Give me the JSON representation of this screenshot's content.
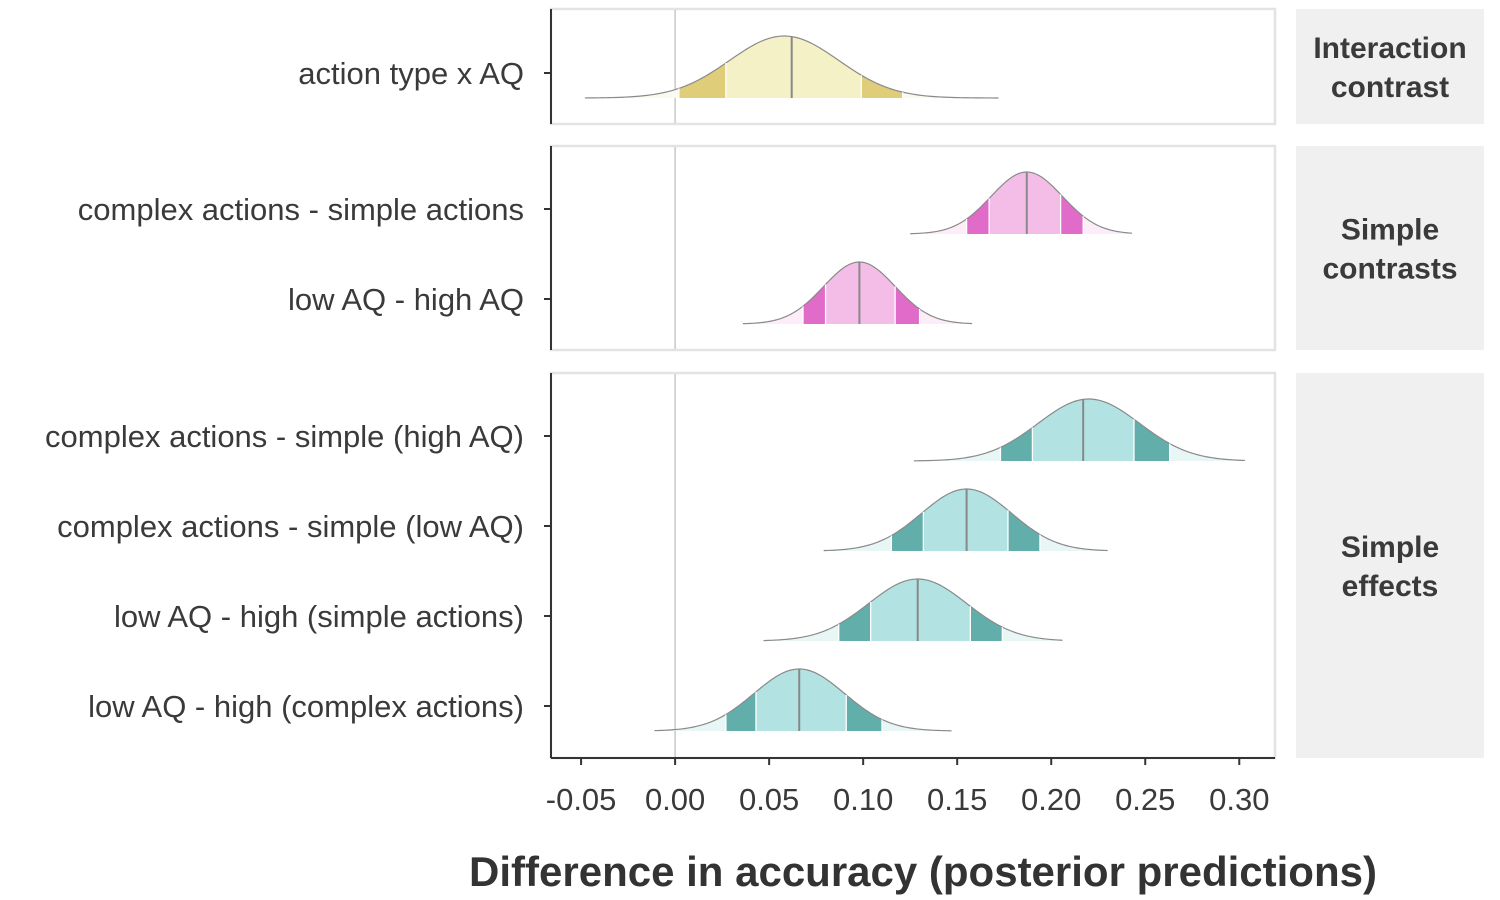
{
  "chart_data": {
    "type": "halfeye",
    "xlabel": "Difference in accuracy (posterior predictions)",
    "xlim": [
      -0.066,
      0.319
    ],
    "xticks": [
      -0.05,
      0.0,
      0.05,
      0.1,
      0.15,
      0.2,
      0.25,
      0.3
    ],
    "xtick_labels": [
      "-0.05",
      "0.00",
      "0.05",
      "0.10",
      "0.15",
      "0.20",
      "0.25",
      "0.30"
    ],
    "reference_line": 0,
    "panels": [
      {
        "id": "interaction",
        "strip_lines": [
          "Interaction",
          "contrast"
        ],
        "fill": "#f5f1c6",
        "inner": "#e0cd7a",
        "tail": "#fbfaee",
        "rows": [
          {
            "label": "action type x AQ",
            "min": -0.048,
            "q05": 0.002,
            "q25": 0.027,
            "median": 0.062,
            "q75": 0.099,
            "q95": 0.121,
            "max": 0.172,
            "mode": 0.058,
            "sd": 0.029
          }
        ]
      },
      {
        "id": "simple-contrasts",
        "strip_lines": [
          "Simple",
          "contrasts"
        ],
        "fill": "#f4bde8",
        "inner": "#e06bc9",
        "tail": "#fcedf8",
        "rows": [
          {
            "label": "complex actions - simple actions",
            "min": 0.125,
            "q05": 0.155,
            "q25": 0.167,
            "median": 0.187,
            "q75": 0.205,
            "q95": 0.217,
            "max": 0.243,
            "mode": 0.187,
            "sd": 0.019
          },
          {
            "label": "low AQ - high AQ",
            "min": 0.036,
            "q05": 0.068,
            "q25": 0.08,
            "median": 0.098,
            "q75": 0.117,
            "q95": 0.13,
            "max": 0.158,
            "mode": 0.098,
            "sd": 0.019
          }
        ]
      },
      {
        "id": "simple-effects",
        "strip_lines": [
          "Simple",
          "effects"
        ],
        "fill": "#b2e2e2",
        "inner": "#62aeab",
        "tail": "#e8f6f6",
        "rows": [
          {
            "label": "complex actions - simple (high AQ)",
            "min": 0.127,
            "q05": 0.173,
            "q25": 0.19,
            "median": 0.217,
            "q75": 0.244,
            "q95": 0.263,
            "max": 0.303,
            "mode": 0.22,
            "sd": 0.027
          },
          {
            "label": "complex actions - simple (low AQ)",
            "min": 0.079,
            "q05": 0.115,
            "q25": 0.132,
            "median": 0.155,
            "q75": 0.177,
            "q95": 0.194,
            "max": 0.23,
            "mode": 0.155,
            "sd": 0.024
          },
          {
            "label": "low AQ - high (simple actions)",
            "min": 0.047,
            "q05": 0.087,
            "q25": 0.104,
            "median": 0.129,
            "q75": 0.157,
            "q95": 0.174,
            "max": 0.206,
            "mode": 0.129,
            "sd": 0.026
          },
          {
            "label": "low AQ - high (complex actions)",
            "min": -0.011,
            "q05": 0.027,
            "q25": 0.043,
            "median": 0.066,
            "q75": 0.091,
            "q95": 0.11,
            "max": 0.147,
            "mode": 0.066,
            "sd": 0.024
          }
        ]
      }
    ]
  }
}
